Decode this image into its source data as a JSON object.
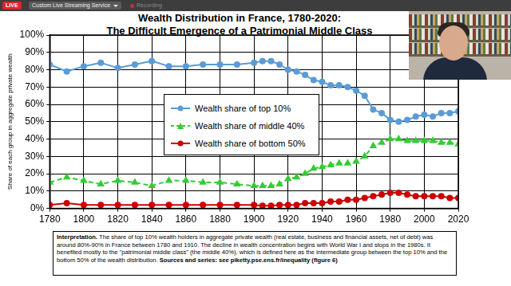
{
  "screen": {
    "badge": "LIVE",
    "service": "Custom Live Streaming Service",
    "status": "Recording"
  },
  "chart_data": {
    "type": "line",
    "title": [
      "Wealth Distribution in France, 1780-2020:",
      "The Difficult Emergence of a Patrimonial Middle Class"
    ],
    "y_label": "Share of each group in aggregate private wealth",
    "x": [
      1780,
      1790,
      1800,
      1810,
      1820,
      1830,
      1840,
      1850,
      1860,
      1870,
      1880,
      1890,
      1900,
      1905,
      1910,
      1915,
      1920,
      1925,
      1930,
      1935,
      1940,
      1945,
      1950,
      1955,
      1960,
      1965,
      1970,
      1975,
      1980,
      1985,
      1990,
      1995,
      2000,
      2005,
      2010,
      2015,
      2020
    ],
    "series": [
      {
        "name": "Wealth share of top 10%",
        "color": "#5b9bd5",
        "marker": "circle",
        "line_style": "solid",
        "values": [
          83,
          79,
          82,
          84,
          81,
          83,
          85,
          82,
          82,
          83,
          83,
          83,
          84,
          85,
          85,
          83,
          80,
          79,
          77,
          74,
          73,
          71,
          71,
          70,
          68,
          65,
          57,
          55,
          51,
          50,
          51,
          53,
          54,
          53,
          55,
          55,
          56
        ]
      },
      {
        "name": "Wealth share of middle 40%",
        "color": "#33cc33",
        "marker": "triangle",
        "line_style": "dashed",
        "values": [
          15,
          18,
          16,
          14,
          16,
          15,
          13,
          16,
          16,
          15,
          15,
          14,
          13,
          13,
          13,
          14,
          17,
          18,
          20,
          23,
          24,
          25,
          26,
          26,
          27,
          30,
          36,
          38,
          40,
          40,
          39,
          39,
          39,
          39,
          38,
          38,
          37
        ]
      },
      {
        "name": "Wealth share of bottom 50%",
        "color": "#cc0000",
        "marker": "circle",
        "line_style": "solid",
        "values": [
          2,
          3,
          2,
          2,
          2,
          2,
          2,
          2,
          2,
          2,
          2,
          2,
          2,
          1.5,
          1.5,
          2,
          2,
          2,
          3,
          3,
          3,
          4,
          4,
          5,
          5,
          6,
          7,
          8,
          9,
          9,
          8,
          7,
          7,
          7,
          7,
          6,
          6
        ]
      }
    ],
    "xlim": [
      1780,
      2020
    ],
    "xticks": [
      1780,
      1800,
      1820,
      1840,
      1860,
      1880,
      1900,
      1920,
      1940,
      1960,
      1980,
      2000,
      2020
    ],
    "ylim": [
      0,
      100
    ],
    "yticks": [
      {
        "value": 0,
        "label": "0%"
      },
      {
        "value": 10,
        "label": "10%"
      },
      {
        "value": 20,
        "label": "20%"
      },
      {
        "value": 30,
        "label": "30%"
      },
      {
        "value": 40,
        "label": "40%"
      },
      {
        "value": 50,
        "label": "50%"
      },
      {
        "value": 60,
        "label": "60%"
      },
      {
        "value": 70,
        "label": "70%"
      },
      {
        "value": 80,
        "label": "80%"
      },
      {
        "value": 90,
        "label": "90%"
      },
      {
        "value": 100,
        "label": "100%"
      }
    ],
    "grid": true,
    "legend": "center",
    "note": {
      "label": "Interpretation.",
      "text": "The share of top 10% wealth holders in aggregate private wealth (real estate, business and financial assets, net of debt) was around 80%-90% in France between 1780 and 1910. The decline in wealth concentration begins with World War I and stops in the 1980s. It benefited mostly to the \"patrimonial middle class\" (the middle 40%), which is defined here as the intermediate group between the top 10% and the bottom 50% of the wealth distribution.",
      "source": "Sources and series: see piketty.pse.ens.fr/inequality (figure 6)"
    }
  }
}
